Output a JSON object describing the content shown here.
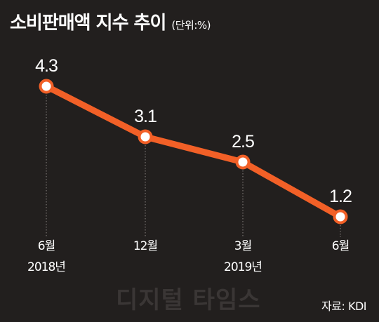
{
  "title": "소비판매액 지수 추이",
  "unit_note": "(단위:%)",
  "source": "자료: KDI",
  "watermark": "디지털 타임스",
  "chart_data": {
    "type": "line",
    "title": "소비판매액 지수 추이",
    "unit": "%",
    "categories": [
      "6월",
      "12월",
      "3월",
      "6월"
    ],
    "category_years": [
      "2018년",
      "",
      "2019년",
      ""
    ],
    "values": [
      4.3,
      3.1,
      2.5,
      1.2
    ],
    "value_labels": [
      "4.3",
      "3.1",
      "2.5",
      "1.2"
    ],
    "ylim": [
      0,
      5
    ],
    "grid": false,
    "legend": "none",
    "line_color": "#f26027",
    "marker_fill": "#ffffff",
    "leader_lines": "dotted"
  }
}
